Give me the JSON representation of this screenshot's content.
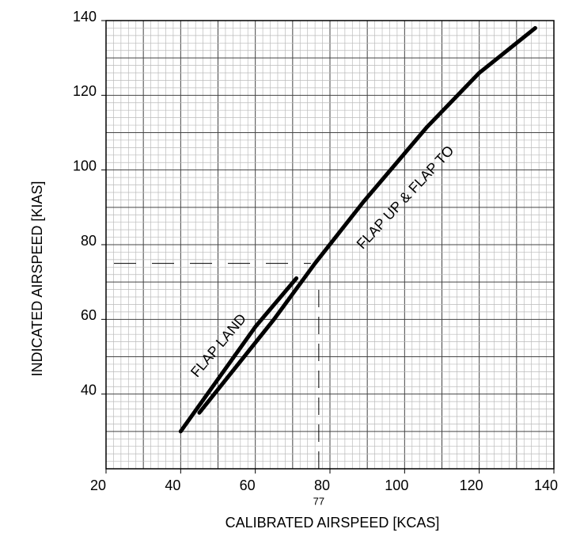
{
  "chart_data": {
    "type": "line",
    "x_label": "CALIBRATED AIRSPEED [KCAS]",
    "y_label": "INDICATED AIRSPEED [KIAS]",
    "xlim": [
      20,
      140
    ],
    "ylim": [
      20,
      140
    ],
    "xticks": [
      20,
      40,
      60,
      80,
      100,
      120,
      140
    ],
    "yticks": [
      40,
      60,
      80,
      100,
      120,
      140
    ],
    "grid": true,
    "major_grid_step": 10,
    "minor_grid_step": 2,
    "series": [
      {
        "name": "FLAP LAND",
        "color": "#000000",
        "x": [
          40,
          50,
          60,
          71
        ],
        "values": [
          30,
          44,
          58,
          71
        ]
      },
      {
        "name": "FLAP UP & FLAP TO",
        "color": "#000000",
        "x": [
          45,
          55,
          65,
          76,
          89,
          106,
          120,
          135
        ],
        "values": [
          35,
          47.5,
          60,
          75,
          91.5,
          111.5,
          126,
          138
        ]
      }
    ],
    "reference": {
      "x": {
        "value": 77,
        "label": "77"
      },
      "y": 75
    }
  }
}
